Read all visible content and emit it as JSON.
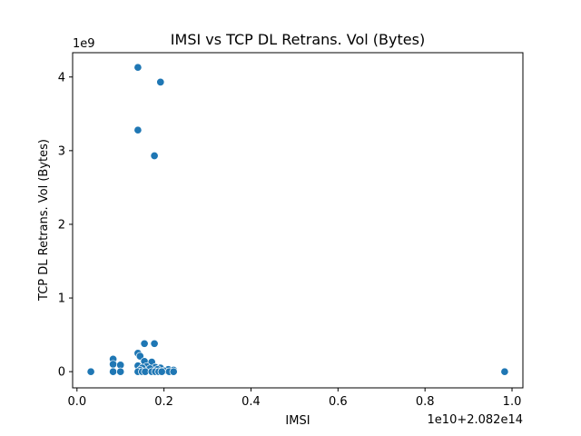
{
  "chart_data": {
    "type": "scatter",
    "title": "IMSI vs TCP DL Retrans. Vol (Bytes)",
    "xlabel": "IMSI",
    "ylabel": "TCP DL Retrans. Vol (Bytes)",
    "x_offset_label": "1e10+2.082e14",
    "y_scale_label": "1e9",
    "xlim": [
      -0.01,
      1.025
    ],
    "ylim": [
      -0.22,
      4.33
    ],
    "x_ticks": [
      0.0,
      0.2,
      0.4,
      0.6,
      0.8,
      1.0
    ],
    "x_tick_labels": [
      "0.0",
      "0.2",
      "0.4",
      "0.6",
      "0.8",
      "1.0"
    ],
    "y_ticks": [
      0,
      1,
      2,
      3,
      4
    ],
    "y_tick_labels": [
      "0",
      "1",
      "2",
      "3",
      "4"
    ],
    "grid": false,
    "marker_color": "#1f77b4",
    "points": [
      {
        "x": 0.14,
        "y": 4.13
      },
      {
        "x": 0.192,
        "y": 3.93
      },
      {
        "x": 0.14,
        "y": 3.28
      },
      {
        "x": 0.178,
        "y": 2.93
      },
      {
        "x": 0.155,
        "y": 0.38
      },
      {
        "x": 0.178,
        "y": 0.38
      },
      {
        "x": 0.14,
        "y": 0.25
      },
      {
        "x": 0.145,
        "y": 0.21
      },
      {
        "x": 0.083,
        "y": 0.17
      },
      {
        "x": 0.155,
        "y": 0.14
      },
      {
        "x": 0.172,
        "y": 0.13
      },
      {
        "x": 0.083,
        "y": 0.1
      },
      {
        "x": 0.1,
        "y": 0.09
      },
      {
        "x": 0.14,
        "y": 0.08
      },
      {
        "x": 0.16,
        "y": 0.07
      },
      {
        "x": 0.18,
        "y": 0.06
      },
      {
        "x": 0.192,
        "y": 0.05
      },
      {
        "x": 0.15,
        "y": 0.05
      },
      {
        "x": 0.168,
        "y": 0.04
      },
      {
        "x": 0.21,
        "y": 0.03
      },
      {
        "x": 0.222,
        "y": 0.02
      },
      {
        "x": 0.185,
        "y": 0.03
      },
      {
        "x": 0.145,
        "y": 0.02
      },
      {
        "x": 0.2,
        "y": 0.01
      },
      {
        "x": 0.032,
        "y": 0.0
      },
      {
        "x": 0.083,
        "y": 0.0
      },
      {
        "x": 0.1,
        "y": 0.0
      },
      {
        "x": 0.14,
        "y": 0.0
      },
      {
        "x": 0.15,
        "y": 0.0
      },
      {
        "x": 0.157,
        "y": 0.0
      },
      {
        "x": 0.172,
        "y": 0.0
      },
      {
        "x": 0.18,
        "y": 0.0
      },
      {
        "x": 0.188,
        "y": 0.0
      },
      {
        "x": 0.195,
        "y": 0.0
      },
      {
        "x": 0.212,
        "y": 0.0
      },
      {
        "x": 0.222,
        "y": 0.0
      },
      {
        "x": 0.983,
        "y": 0.0
      }
    ]
  }
}
